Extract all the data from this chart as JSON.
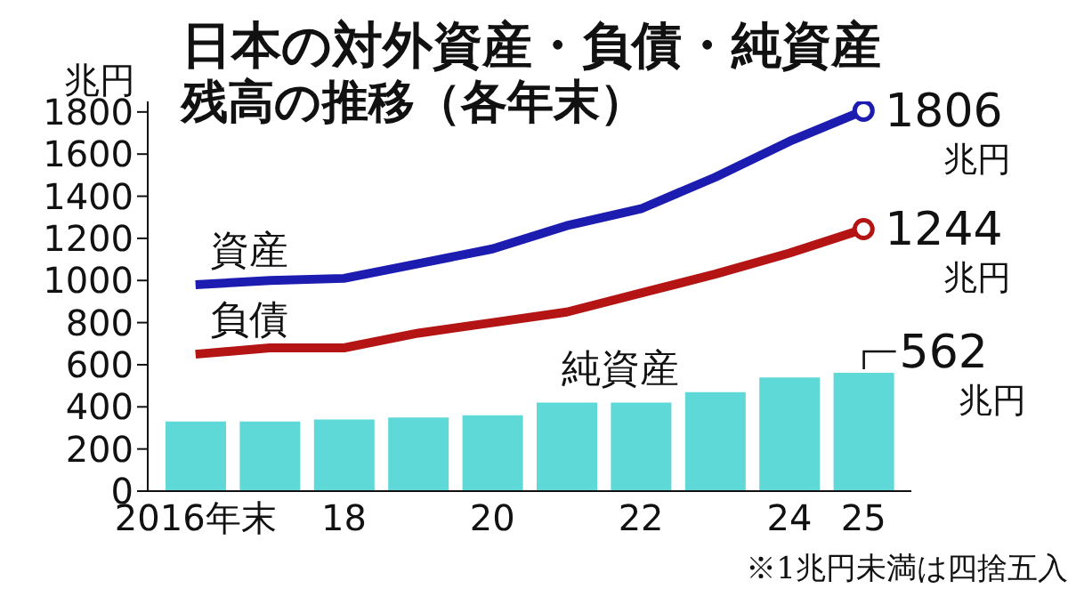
{
  "chart_data": {
    "type": "bar",
    "title": "日本の対外資産・負債・純資産",
    "subtitle": "残高の推移（各年末）",
    "ylabel": "兆円",
    "annotations": [
      "※1兆円未満は四捨五入"
    ],
    "categories": [
      "2016年末",
      null,
      "18",
      null,
      "20",
      null,
      "22",
      null,
      "24",
      "25"
    ],
    "series": [
      {
        "name": "資産",
        "type": "line",
        "color": "#1c1cb0",
        "values": [
          980,
          1000,
          1010,
          1080,
          1150,
          1260,
          1340,
          1490,
          1660,
          1806
        ],
        "value_labels": [
          null,
          null,
          null,
          null,
          null,
          null,
          null,
          null,
          null,
          "1806"
        ]
      },
      {
        "name": "負債",
        "type": "line",
        "color": "#b41414",
        "values": [
          650,
          680,
          680,
          750,
          800,
          850,
          940,
          1030,
          1130,
          1244
        ],
        "value_labels": [
          null,
          null,
          null,
          null,
          null,
          null,
          null,
          null,
          null,
          "1244"
        ]
      },
      {
        "name": "純資産",
        "color": "#5fd8d8",
        "values": [
          330,
          330,
          340,
          350,
          360,
          420,
          420,
          470,
          540,
          562
        ],
        "value_labels": [
          null,
          null,
          null,
          null,
          null,
          null,
          null,
          null,
          null,
          "562"
        ]
      }
    ],
    "ylim": [
      0,
      1850
    ],
    "yticks": [
      0,
      200,
      400,
      600,
      800,
      1000,
      1200,
      1400,
      1600,
      1800
    ]
  }
}
